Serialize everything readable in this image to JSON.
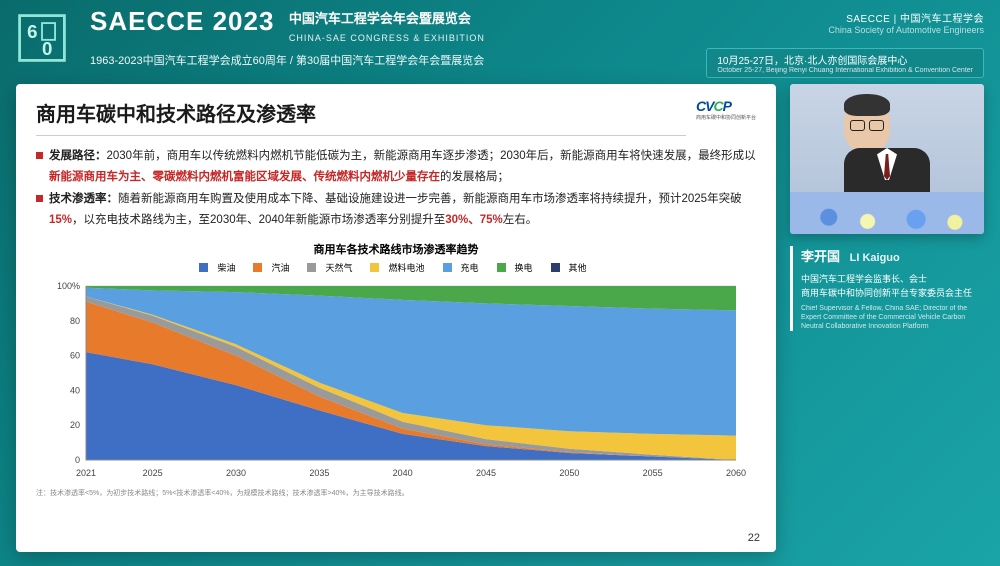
{
  "header": {
    "event_code": "SAECCE 2023",
    "subtitle_cn": "中国汽车工程学会年会暨展览会",
    "subtitle_en": "CHINA-SAE CONGRESS & EXHIBITION",
    "line2": "1963-2023中国汽车工程学会成立60周年 / 第30届中国汽车工程学会年会暨展览会",
    "org_logo_text": "SAECCE | 中国汽车工程学会",
    "org_logo_sub": "China Society of Automotive Engineers",
    "date_badge": "10月25-27日，北京·北人亦创国际会展中心",
    "date_badge_en": "October 25-27, Beijing Renyi Chuang International Exhibition & Convention Center",
    "bg_gradient": [
      "#0a6b6b",
      "#0d878a",
      "#1aa4a8"
    ]
  },
  "slide": {
    "title": "商用车碳中和技术路径及渗透率",
    "logo": {
      "text": "CVCP",
      "accent_color": "#2bb24c",
      "base_color": "#004a9f",
      "sub": "商用车碳中和协同创新平台"
    },
    "bullets": [
      {
        "label": "发展路径：",
        "segments": [
          {
            "t": "2030年前，商用车以传统燃料内燃机节能低碳为主，新能源商用车逐步渗透；2030年后，新能源商用车将快速发展，最终形成以",
            "hl": false
          },
          {
            "t": "新能源商用车为主、零碳燃料内燃机富能区域发展、传统燃料内燃机少量存在",
            "hl": true
          },
          {
            "t": "的发展格局；",
            "hl": false
          }
        ]
      },
      {
        "label": "技术渗透率：",
        "segments": [
          {
            "t": "随着新能源商用车购置及使用成本下降、基础设施建设进一步完善，新能源商用车市场渗透率将持续提升，预计2025年突破",
            "hl": false
          },
          {
            "t": "15%",
            "hl": true
          },
          {
            "t": "，以充电技术路线为主，至2030年、2040年新能源市场渗透率分别提升至",
            "hl": false
          },
          {
            "t": "30%、75%",
            "hl": true
          },
          {
            "t": "左右。",
            "hl": false
          }
        ]
      }
    ],
    "chart": {
      "type": "area-stacked-100",
      "title": "商用车各技术路线市场渗透率趋势",
      "x_label_years": [
        2021,
        2025,
        2030,
        2035,
        2040,
        2045,
        2050,
        2055,
        2060
      ],
      "xlim": [
        2021,
        2060
      ],
      "ylim": [
        0,
        100
      ],
      "ytick_step": 20,
      "y_ticks": [
        "0",
        "20",
        "40",
        "60",
        "80",
        "100%"
      ],
      "background_color": "#ffffff",
      "grid_color": "#d9d9d9",
      "axis_fontsize": 9,
      "series": [
        {
          "name": "柴油",
          "color": "#3f6fc4",
          "values": [
            62,
            55,
            43,
            28.5,
            15,
            8,
            4,
            2,
            0
          ]
        },
        {
          "name": "汽油",
          "color": "#e87a2c",
          "values": [
            29,
            24,
            17,
            8,
            3,
            1,
            0.5,
            0,
            0
          ]
        },
        {
          "name": "天然气",
          "color": "#9a9a9a",
          "values": [
            3,
            4,
            5,
            5,
            4,
            3,
            2,
            1,
            0
          ]
        },
        {
          "name": "燃料电池",
          "color": "#f2c53d",
          "values": [
            0,
            0.5,
            1.5,
            3,
            5,
            8,
            10,
            12,
            14
          ]
        },
        {
          "name": "充电",
          "color": "#5aa0e0",
          "values": [
            5,
            14,
            30,
            50,
            65,
            70,
            72,
            72,
            72
          ]
        },
        {
          "name": "换电",
          "color": "#4aa84a",
          "values": [
            1,
            2.5,
            3.5,
            5.5,
            8,
            10,
            11.5,
            13,
            14
          ]
        },
        {
          "name": "其他",
          "color": "#2d3e6e",
          "values": [
            0,
            0,
            0,
            0,
            0,
            0,
            0,
            0,
            0
          ]
        }
      ]
    },
    "footnote": "注：技术渗透率<5%，为初步技术路线；5%<技术渗透率<40%，为规模技术路线；技术渗透率>40%，为主导技术路线。",
    "page_number": "22"
  },
  "speaker": {
    "name_cn": "李开国",
    "name_en": "LI Kaiguo",
    "title_cn_1": "中国汽车工程学会监事长、会士",
    "title_cn_2": "商用车碳中和协同创新平台专家委员会主任",
    "title_en": "Chief Supervisor & Fellow, China SAE; Director of the Expert Committee of the Commercial Vehicle Carbon Neutral Collaborative Innovation Platform"
  }
}
